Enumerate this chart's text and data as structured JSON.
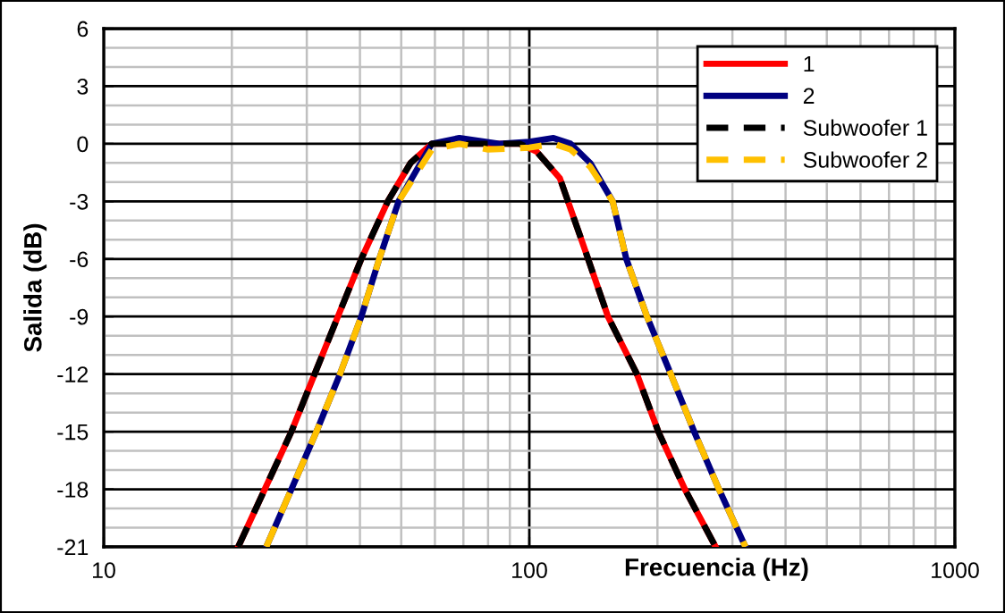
{
  "chart_data": {
    "type": "line",
    "xlabel": "Frecuencia (Hz)",
    "ylabel": "Salida (dB)",
    "log": "x",
    "xlim": [
      10,
      1000
    ],
    "xticks": [
      10,
      100,
      1000
    ],
    "ylim": [
      -21,
      6
    ],
    "yticks": [
      -21,
      -18,
      -15,
      -12,
      -9,
      -6,
      -3,
      0,
      3,
      6
    ],
    "grid": true,
    "legend": "top right",
    "marker": "none",
    "series": [
      {
        "name": "1",
        "color": "#ff0000",
        "line_style": "solid",
        "x": [
          20.7,
          23.9,
          27.6,
          31.3,
          35.5,
          40.3,
          46.5,
          52.6,
          59,
          70,
          85,
          95,
          104,
          118,
          135,
          153,
          179,
          201,
          232,
          274
        ],
        "values": [
          -21,
          -18,
          -15,
          -12,
          -9,
          -6,
          -3,
          -1,
          0,
          0,
          0,
          0,
          -0.4,
          -1.8,
          -5.5,
          -9,
          -12,
          -15,
          -18,
          -21
        ]
      },
      {
        "name": "2",
        "color": "#000080",
        "line_style": "solid",
        "x": [
          24.1,
          27.6,
          31.6,
          35.9,
          40.3,
          44.4,
          49.3,
          59,
          68.5,
          85,
          100,
          114,
          125,
          139,
          157,
          169,
          189,
          215,
          244,
          279,
          322
        ],
        "values": [
          -21,
          -18,
          -15,
          -12,
          -9,
          -6,
          -3,
          0,
          0.3,
          0,
          0.1,
          0.3,
          0,
          -1,
          -3,
          -6,
          -9,
          -12,
          -15,
          -18,
          -21
        ]
      },
      {
        "name": "Subwoofer 1",
        "color": "#000000",
        "line_style": "dashed",
        "x": [
          20.7,
          23.9,
          27.6,
          31.3,
          35.5,
          40.3,
          46.5,
          52.6,
          59,
          70,
          85,
          95,
          104,
          118,
          135,
          153,
          179,
          201,
          232,
          274
        ],
        "values": [
          -21,
          -18,
          -15,
          -12,
          -9,
          -6,
          -3,
          -1,
          0,
          0,
          0,
          0,
          -0.4,
          -1.8,
          -5.5,
          -9,
          -12,
          -15,
          -18,
          -21
        ]
      },
      {
        "name": "Subwoofer 2",
        "color": "#ffc000",
        "line_style": "dashed",
        "x": [
          24.1,
          27.6,
          31.6,
          35.9,
          40.3,
          44.4,
          49.3,
          59,
          68.5,
          80,
          100,
          114,
          125,
          139,
          157,
          169,
          189,
          215,
          244,
          279,
          322
        ],
        "values": [
          -21,
          -18,
          -15,
          -12,
          -9,
          -6,
          -3,
          -0.3,
          0,
          -0.3,
          -0.2,
          0,
          -0.3,
          -1.2,
          -3,
          -6,
          -9,
          -12,
          -15,
          -18,
          -21
        ]
      }
    ]
  }
}
